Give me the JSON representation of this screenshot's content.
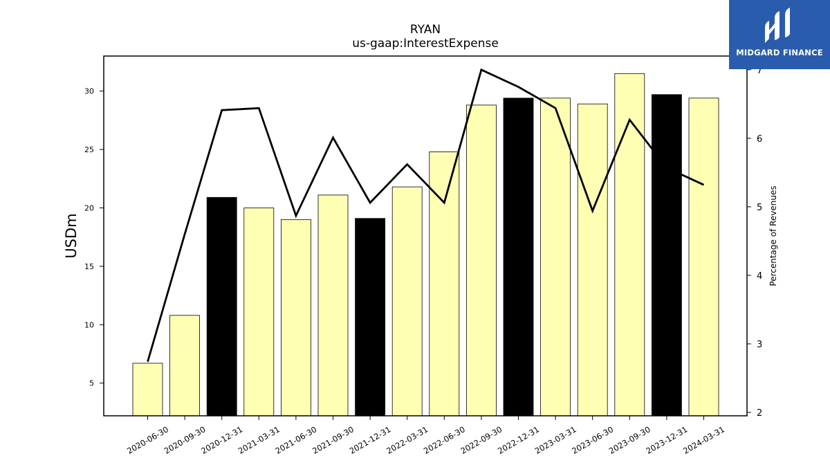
{
  "chart_data": {
    "type": "bar",
    "title": "RYAN",
    "subtitle": "us-gaap:InterestExpense",
    "ylabel": "USDm",
    "y2label": "Percentage of Revenues",
    "categories": [
      "2020-06-30",
      "2020-09-30",
      "2020-12-31",
      "2021-03-31",
      "2021-06-30",
      "2021-09-30",
      "2021-12-31",
      "2022-03-31",
      "2022-06-30",
      "2022-09-30",
      "2022-12-31",
      "2023-03-31",
      "2023-06-30",
      "2023-09-30",
      "2023-12-31",
      "2024-03-31"
    ],
    "series": [
      {
        "type": "bar",
        "values": [
          6.7,
          10.8,
          20.9,
          20.0,
          19.0,
          21.1,
          19.1,
          21.8,
          24.8,
          28.8,
          29.4,
          29.4,
          28.9,
          31.5,
          29.7,
          29.4
        ],
        "highlight": [
          false,
          false,
          true,
          false,
          false,
          false,
          true,
          false,
          false,
          false,
          true,
          false,
          false,
          false,
          true,
          false
        ]
      },
      {
        "type": "line",
        "axis": "right",
        "values": [
          2.74,
          4.6,
          6.41,
          6.44,
          4.87,
          6.01,
          5.06,
          5.62,
          5.06,
          7.0,
          6.75,
          6.44,
          4.94,
          6.27,
          5.57,
          5.32
        ]
      }
    ],
    "ylim": [
      2.2,
      33.0
    ],
    "y2lim": [
      1.95,
      7.2
    ],
    "yticks": [
      5,
      10,
      15,
      20,
      25,
      30
    ],
    "y2ticks": [
      2,
      3,
      4,
      5,
      6,
      7
    ],
    "grid": false,
    "colors": {
      "bar": "#ffffb3",
      "bar_highlight": "#000000",
      "line": "#000000",
      "edge": "#000000"
    }
  },
  "logo": {
    "text": "MIDGARD FINANCE",
    "background": "#2a5cad"
  }
}
